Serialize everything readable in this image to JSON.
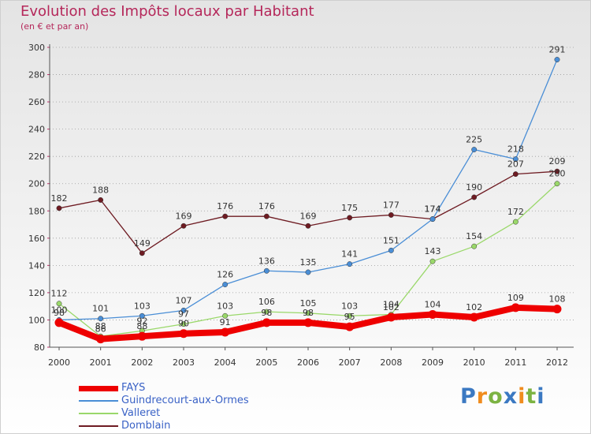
{
  "title": "Evolution des Impôts locaux par Habitant",
  "subtitle": "(en € et par an)",
  "logo": {
    "letters": [
      "P",
      "r",
      "o",
      "x",
      "i",
      "t",
      "i"
    ],
    "colors": [
      "#3b79c2",
      "#f08c1e",
      "#7cb342",
      "#3b79c2",
      "#f08c1e",
      "#7cb342",
      "#3b79c2"
    ]
  },
  "chart_data": {
    "type": "line",
    "title": "Evolution des Impôts locaux par Habitant",
    "subtitle": "(en € et par an)",
    "x": [
      "2000",
      "2001",
      "2002",
      "2003",
      "2004",
      "2005",
      "2006",
      "2007",
      "2008",
      "2009",
      "2010",
      "2011",
      "2012"
    ],
    "ylim": [
      80,
      300
    ],
    "yticks": [
      "80",
      "100",
      "120",
      "140",
      "160",
      "180",
      "200",
      "220",
      "240",
      "260",
      "280",
      "300"
    ],
    "xlabel": "",
    "ylabel": "",
    "grid": "horizontal-dotted",
    "legend_position": "bottom-left",
    "series": [
      {
        "name": "Domblain",
        "color": "#6e1b22",
        "values": [
          182,
          188,
          149,
          169,
          176,
          176,
          169,
          175,
          177,
          174,
          190,
          207,
          209
        ],
        "labels": [
          "182",
          "188",
          "149",
          "169",
          "176",
          "176",
          "169",
          "175",
          "177",
          "174",
          "190",
          "207",
          "209"
        ]
      },
      {
        "name": "Valleret",
        "color": "#9ad86a",
        "values": [
          112,
          88,
          92,
          97,
          103,
          106,
          105,
          103,
          104,
          143,
          154,
          172,
          200
        ],
        "labels": [
          "112",
          "88",
          "92",
          "97",
          "103",
          "106",
          "105",
          "103",
          "104",
          "143",
          "154",
          "172",
          "200"
        ]
      },
      {
        "name": "Guindrecourt-aux-Ormes",
        "color": "#4a8ed6",
        "values": [
          100,
          101,
          103,
          107,
          126,
          136,
          135,
          141,
          151,
          174,
          225,
          218,
          291
        ],
        "labels": [
          "100",
          "101",
          "103",
          "107",
          "126",
          "136",
          "135",
          "141",
          "151",
          "174",
          "225",
          "218",
          "291"
        ]
      },
      {
        "name": "FAYS",
        "color": "#ee0000",
        "values": [
          98,
          86,
          88,
          90,
          91,
          98,
          98,
          95,
          102,
          104,
          102,
          109,
          108
        ],
        "labels": [
          "98",
          "86",
          "88",
          "90",
          "91",
          "98",
          "98",
          "95",
          "102",
          "104",
          "102",
          "109",
          "108"
        ]
      }
    ],
    "legend_order": [
      "FAYS",
      "Guindrecourt-aux-Ormes",
      "Valleret",
      "Domblain"
    ]
  }
}
